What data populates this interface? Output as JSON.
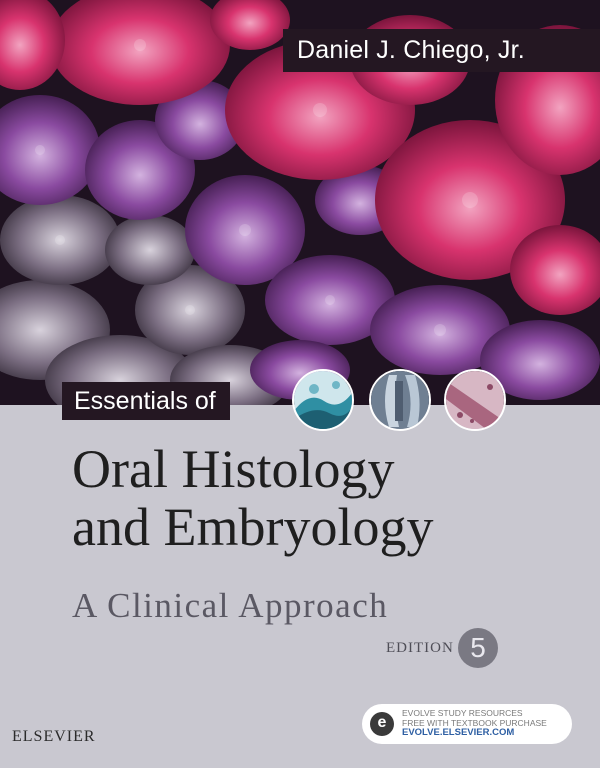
{
  "author": "Daniel J. Chiego, Jr.",
  "series_label": "Essentials of",
  "title_lines": [
    "Oral Histology",
    "and Embryology"
  ],
  "subtitle": "A Clinical Approach",
  "edition": {
    "label": "EDITION",
    "number": "5"
  },
  "publisher": "ELSEVIER",
  "evolve": {
    "icon": "evolve-e-icon",
    "line1": "EVOLVE STUDY RESOURCES",
    "line2": "FREE WITH TEXTBOOK PURCHASE",
    "url": "EVOLVE.ELSEVIER.COM"
  },
  "colors": {
    "magenta": "#d8336e",
    "purple": "#7a3f8c",
    "dark_band": "#241722",
    "background": "#c9c8d0"
  }
}
